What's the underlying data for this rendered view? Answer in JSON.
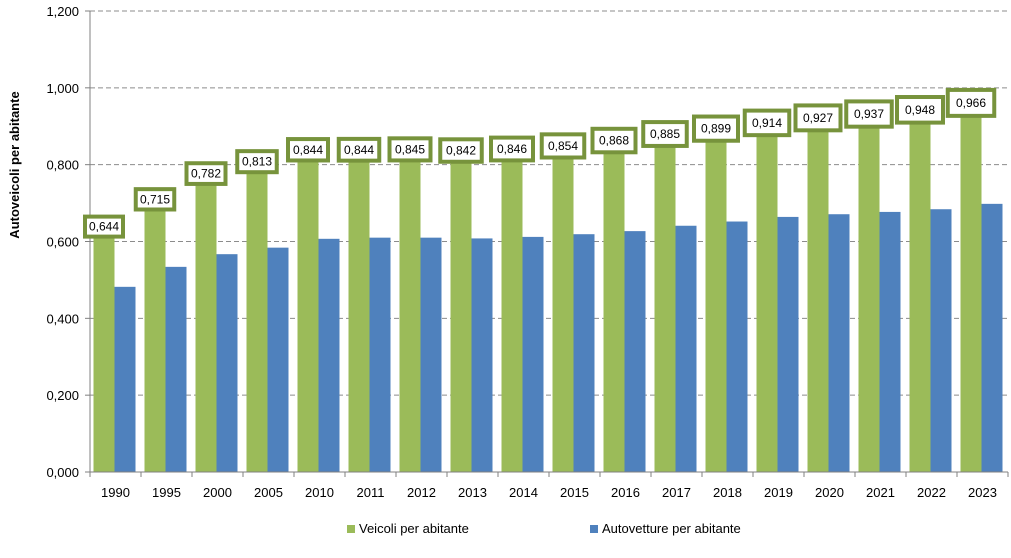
{
  "chart_data": {
    "type": "bar",
    "ylabel": "Autoveicoli per abitante",
    "ylim": [
      0,
      1.2
    ],
    "yticks": [
      "0,000",
      "0,200",
      "0,400",
      "0,600",
      "0,800",
      "1,000",
      "1,200"
    ],
    "grid": true,
    "legend_position": "bottom",
    "categories": [
      "1990",
      "1995",
      "2000",
      "2005",
      "2010",
      "2011",
      "2012",
      "2013",
      "2014",
      "2015",
      "2016",
      "2017",
      "2018",
      "2019",
      "2020",
      "2021",
      "2022",
      "2023"
    ],
    "series": [
      {
        "name": "Veicoli per abitante",
        "color": "#9bbb59",
        "values": [
          0.644,
          0.715,
          0.782,
          0.813,
          0.844,
          0.844,
          0.845,
          0.842,
          0.846,
          0.854,
          0.868,
          0.885,
          0.899,
          0.914,
          0.927,
          0.937,
          0.948,
          0.966
        ],
        "data_labels": [
          "0,644",
          "0,715",
          "0,782",
          "0,813",
          "0,844",
          "0,844",
          "0,845",
          "0,842",
          "0,846",
          "0,854",
          "0,868",
          "0,885",
          "0,899",
          "0,914",
          "0,927",
          "0,937",
          "0,948",
          "0,966"
        ],
        "label_border_color": "#77933c"
      },
      {
        "name": "Autovetture per abitante",
        "color": "#4f81bd",
        "values": [
          0.482,
          0.534,
          0.567,
          0.584,
          0.607,
          0.61,
          0.61,
          0.608,
          0.612,
          0.619,
          0.627,
          0.641,
          0.652,
          0.664,
          0.671,
          0.677,
          0.684,
          0.698
        ]
      }
    ]
  }
}
